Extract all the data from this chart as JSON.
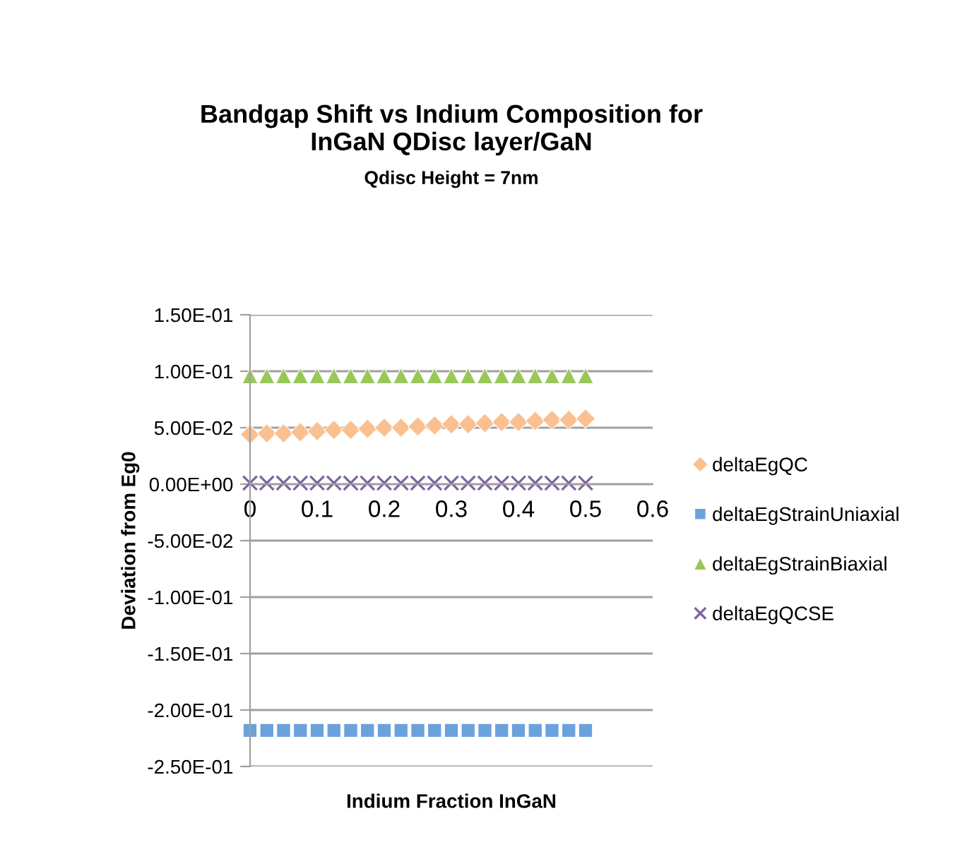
{
  "chart_data": {
    "type": "scatter",
    "title": "Bandgap Shift vs Indium Composition for\nInGaN QDisc layer/GaN",
    "subtitle": "Qdisc Height = 7nm",
    "xlabel": "Indium Fraction InGaN",
    "ylabel": "Deviation from Eg0",
    "x": [
      0,
      0.025,
      0.05,
      0.075,
      0.1,
      0.125,
      0.15,
      0.175,
      0.2,
      0.225,
      0.25,
      0.275,
      0.3,
      0.325,
      0.35,
      0.375,
      0.4,
      0.425,
      0.45,
      0.475,
      0.5
    ],
    "series": [
      {
        "name": "deltaEgQC",
        "color": "#fac090",
        "marker": "diamond",
        "values": [
          0.044,
          0.045,
          0.045,
          0.046,
          0.047,
          0.048,
          0.048,
          0.049,
          0.05,
          0.05,
          0.051,
          0.052,
          0.053,
          0.053,
          0.054,
          0.055,
          0.055,
          0.056,
          0.057,
          0.057,
          0.058
        ]
      },
      {
        "name": "deltaEgStrainUniaxial",
        "color": "#6aa2dd",
        "marker": "square",
        "values": [
          -0.218,
          -0.218,
          -0.218,
          -0.218,
          -0.218,
          -0.218,
          -0.218,
          -0.218,
          -0.218,
          -0.218,
          -0.218,
          -0.218,
          -0.218,
          -0.218,
          -0.218,
          -0.218,
          -0.218,
          -0.218,
          -0.218,
          -0.218,
          -0.218
        ]
      },
      {
        "name": "deltaEgStrainBiaxial",
        "color": "#9bc75a",
        "marker": "triangle",
        "values": [
          0.096,
          0.096,
          0.096,
          0.096,
          0.096,
          0.096,
          0.096,
          0.096,
          0.096,
          0.096,
          0.096,
          0.096,
          0.096,
          0.096,
          0.096,
          0.096,
          0.096,
          0.096,
          0.096,
          0.096,
          0.096
        ]
      },
      {
        "name": "deltaEgQCSE",
        "color": "#8064a2",
        "marker": "cross",
        "values": [
          0.001,
          0.001,
          0.001,
          0.001,
          0.001,
          0.001,
          0.001,
          0.001,
          0.001,
          0.001,
          0.001,
          0.001,
          0.001,
          0.001,
          0.001,
          0.001,
          0.001,
          0.001,
          0.001,
          0.001,
          0.001
        ]
      }
    ],
    "xlim": [
      0,
      0.6
    ],
    "xticks": [
      0,
      0.1,
      0.2,
      0.3,
      0.4,
      0.5,
      0.6
    ],
    "ylim": [
      -0.25,
      0.15
    ],
    "yticks": [
      {
        "value": -0.25,
        "label": "-2.50E-01"
      },
      {
        "value": -0.2,
        "label": "-2.00E-01"
      },
      {
        "value": -0.15,
        "label": "-1.50E-01"
      },
      {
        "value": -0.1,
        "label": "-1.00E-01"
      },
      {
        "value": -0.05,
        "label": "-5.00E-02"
      },
      {
        "value": 0,
        "label": "0.00E+00"
      },
      {
        "value": 0.05,
        "label": "5.00E-02"
      },
      {
        "value": 0.1,
        "label": "1.00E-01"
      },
      {
        "value": 0.15,
        "label": "1.50E-01"
      }
    ],
    "grid": "y",
    "legend": "right"
  }
}
